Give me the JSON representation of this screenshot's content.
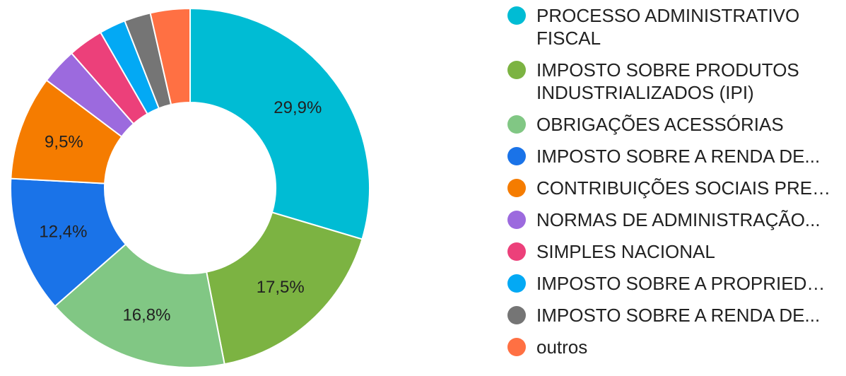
{
  "chart_data": {
    "type": "pie",
    "donut": true,
    "legend_position": "right",
    "title": "",
    "slices": [
      {
        "label": "PROCESSO ADMINISTRATIVO FISCAL",
        "value": 29.9,
        "value_label": "29,9%",
        "color": "#00BCD4",
        "wrap": true
      },
      {
        "label": "IMPOSTO SOBRE PRODUTOS INDUSTRIALIZADOS (IPI)",
        "value": 17.5,
        "value_label": "17,5%",
        "color": "#7CB342",
        "wrap": true
      },
      {
        "label": "OBRIGAÇÕES ACESSÓRIAS",
        "value": 16.8,
        "value_label": "16,8%",
        "color": "#81C784",
        "wrap": false
      },
      {
        "label": "IMPOSTO SOBRE A RENDA DE...",
        "value": 12.4,
        "value_label": "12,4%",
        "color": "#1A73E8",
        "wrap": false
      },
      {
        "label": "CONTRIBUIÇÕES SOCIAIS PREV...",
        "value": 9.5,
        "value_label": "9,5%",
        "color": "#F57C00",
        "wrap": false
      },
      {
        "label": "NORMAS DE ADMINISTRAÇÃO...",
        "value": 3.3,
        "value_label": "",
        "color": "#9C6ADE",
        "wrap": false
      },
      {
        "label": "SIMPLES NACIONAL",
        "value": 3.2,
        "value_label": "",
        "color": "#EC407A",
        "wrap": false
      },
      {
        "label": "IMPOSTO SOBRE A PROPRIEDA...",
        "value": 2.4,
        "value_label": "",
        "color": "#03A9F4",
        "wrap": false
      },
      {
        "label": "IMPOSTO SOBRE A RENDA DE...",
        "value": 2.4,
        "value_label": "",
        "color": "#757575",
        "wrap": false
      },
      {
        "label": "outros",
        "value": 3.6,
        "value_label": "",
        "color": "#FF7043",
        "wrap": false
      }
    ]
  }
}
